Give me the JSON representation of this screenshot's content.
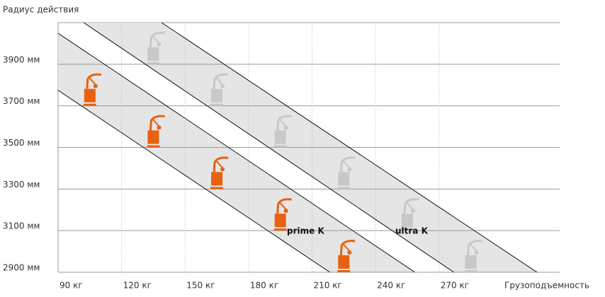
{
  "chart_data": {
    "type": "scatter",
    "y_label": "Радиус действия",
    "x_label": "Грузоподъемность",
    "xlim": [
      90,
      327
    ],
    "ylim": [
      2900,
      4100
    ],
    "xticks": [
      {
        "value": 90,
        "label": "90 кг"
      },
      {
        "value": 120,
        "label": "120 кг"
      },
      {
        "value": 150,
        "label": "150 кг"
      },
      {
        "value": 180,
        "label": "180 кг"
      },
      {
        "value": 210,
        "label": "210 кг"
      },
      {
        "value": 240,
        "label": "240 кг"
      },
      {
        "value": 270,
        "label": "270 кг"
      }
    ],
    "yticks": [
      {
        "value": 2900,
        "label": "2900 мм"
      },
      {
        "value": 3100,
        "label": "3100 мм"
      },
      {
        "value": 3300,
        "label": "3300 мм"
      },
      {
        "value": 3500,
        "label": "3500 мм"
      },
      {
        "value": 3700,
        "label": "3700 мм"
      },
      {
        "value": 3900,
        "label": "3900 мм"
      }
    ],
    "grid": true,
    "series": [
      {
        "name": "prime K",
        "color": "#e8610f",
        "band_color": "#e5e5e5",
        "x": [
          105,
          135,
          165,
          195,
          225
        ],
        "values": [
          3700,
          3500,
          3300,
          3100,
          2900
        ],
        "band": {
          "upper": {
            "x": [
              90,
              258.6
            ],
            "y": [
              4049,
              2900
            ]
          },
          "lower": {
            "x": [
              90,
              218.4
            ],
            "y": [
              3775,
              2900
            ]
          }
        }
      },
      {
        "name": "ultra K",
        "color": "#c8c8c8",
        "band_color": "#e5e5e5",
        "x": [
          135,
          165,
          195,
          225,
          255,
          285
        ],
        "values": [
          3900,
          3700,
          3500,
          3300,
          3100,
          2900
        ],
        "band": {
          "upper": {
            "x": [
              138.9,
              316.3
            ],
            "y": [
              4100,
              2900
            ]
          },
          "lower": {
            "x": [
              102.1,
              277
            ],
            "y": [
              4100,
              2900
            ]
          }
        }
      }
    ]
  }
}
